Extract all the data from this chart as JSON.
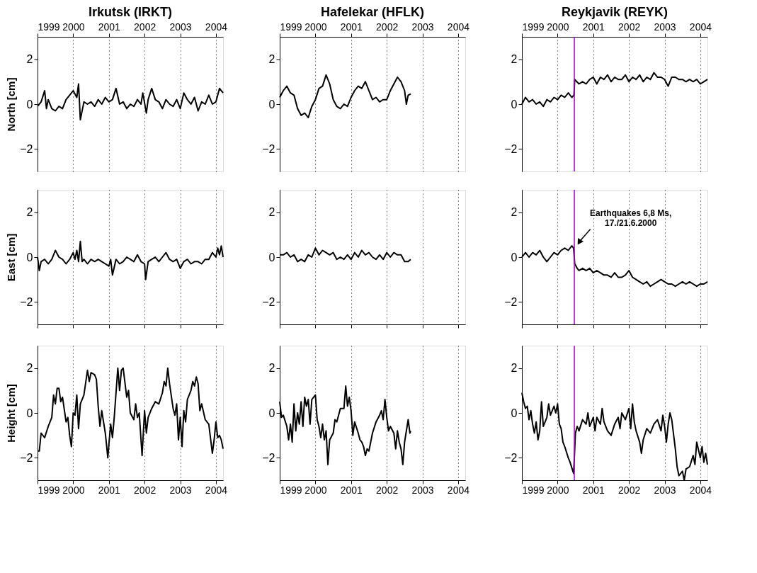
{
  "chart_data": [
    {
      "type": "line",
      "title": "Irkutsk (IRKT)",
      "ylabel": "North [cm]",
      "xlim": [
        1999,
        2004.2
      ],
      "xticks": [
        1999,
        2000,
        2001,
        2002,
        2003,
        2004
      ],
      "ylim": [
        -3,
        3
      ],
      "yticks": [
        -2,
        0,
        2
      ],
      "grid": "x",
      "x": [
        1999.0,
        1999.1,
        1999.2,
        1999.25,
        1999.3,
        1999.4,
        1999.5,
        1999.6,
        1999.7,
        1999.8,
        1999.9,
        2000.0,
        2000.1,
        2000.15,
        2000.2,
        2000.3,
        2000.4,
        2000.5,
        2000.6,
        2000.7,
        2000.8,
        2000.9,
        2001.0,
        2001.1,
        2001.2,
        2001.3,
        2001.4,
        2001.5,
        2001.6,
        2001.7,
        2001.8,
        2001.9,
        2001.95,
        2002.05,
        2002.1,
        2002.2,
        2002.3,
        2002.4,
        2002.5,
        2002.6,
        2002.7,
        2002.8,
        2002.9,
        2003.0,
        2003.1,
        2003.2,
        2003.3,
        2003.4,
        2003.5,
        2003.6,
        2003.7,
        2003.8,
        2003.9,
        2004.0,
        2004.1,
        2004.2
      ],
      "series": [
        {
          "color": "#000000",
          "values": [
            -0.1,
            0.1,
            0.6,
            -0.2,
            0.2,
            -0.2,
            -0.3,
            -0.1,
            -0.2,
            0.2,
            0.4,
            0.6,
            0.3,
            0.9,
            -0.7,
            0.1,
            0.0,
            0.1,
            -0.1,
            0.2,
            0.0,
            0.3,
            0.1,
            0.2,
            0.7,
            0.0,
            0.1,
            -0.2,
            0.0,
            -0.1,
            0.2,
            0.0,
            0.5,
            -0.4,
            0.2,
            0.7,
            0.2,
            0.1,
            -0.2,
            0.2,
            0.0,
            -0.1,
            0.2,
            -0.2,
            0.5,
            0.2,
            0.0,
            0.3,
            -0.3,
            0.1,
            0.0,
            0.4,
            0.0,
            0.1,
            0.7,
            0.5
          ]
        }
      ]
    },
    {
      "type": "line",
      "title": "Hafelekar (HFLK)",
      "xlim": [
        1999,
        2004.2
      ],
      "xticks": [
        1999,
        2000,
        2001,
        2002,
        2003,
        2004
      ],
      "ylim": [
        -3,
        3
      ],
      "yticks": [
        -2,
        0,
        2
      ],
      "grid": "x",
      "x": [
        1999.0,
        1999.1,
        1999.2,
        1999.3,
        1999.4,
        1999.5,
        1999.6,
        1999.7,
        1999.8,
        1999.9,
        2000.0,
        2000.1,
        2000.2,
        2000.3,
        2000.4,
        2000.5,
        2000.6,
        2000.7,
        2000.8,
        2000.9,
        2001.0,
        2001.1,
        2001.2,
        2001.3,
        2001.4,
        2001.5,
        2001.6,
        2001.7,
        2001.8,
        2001.9,
        2002.0,
        2002.1,
        2002.2,
        2002.3,
        2002.4,
        2002.5,
        2002.55,
        2002.6,
        2002.67
      ],
      "series": [
        {
          "color": "#000000",
          "values": [
            0.3,
            0.6,
            0.8,
            0.5,
            0.4,
            -0.2,
            -0.5,
            -0.4,
            -0.6,
            -0.1,
            0.2,
            0.7,
            0.8,
            1.3,
            0.9,
            0.2,
            -0.1,
            -0.2,
            0.0,
            -0.1,
            0.3,
            0.6,
            0.8,
            0.7,
            1.0,
            0.6,
            0.2,
            0.3,
            0.1,
            0.2,
            0.2,
            0.6,
            0.9,
            1.2,
            1.0,
            0.6,
            0.0,
            0.4,
            0.45
          ]
        }
      ]
    },
    {
      "type": "line",
      "title": "Reykjavik (REYK)",
      "xlim": [
        1999,
        2004.2
      ],
      "xticks": [
        1999,
        2000,
        2001,
        2002,
        2003,
        2004
      ],
      "ylim": [
        -3,
        3
      ],
      "yticks": [
        -2,
        0,
        2
      ],
      "grid": "x",
      "ref_lines": [
        {
          "axis": "x",
          "value": 2000.47,
          "color": "#aa00dd"
        }
      ],
      "x": [
        1999.0,
        1999.1,
        1999.2,
        1999.3,
        1999.4,
        1999.5,
        1999.6,
        1999.7,
        1999.8,
        1999.9,
        2000.0,
        2000.1,
        2000.2,
        2000.3,
        2000.4,
        2000.46,
        2000.48,
        2000.6,
        2000.7,
        2000.8,
        2000.9,
        2001.0,
        2001.1,
        2001.2,
        2001.3,
        2001.4,
        2001.5,
        2001.6,
        2001.7,
        2001.8,
        2001.9,
        2002.0,
        2002.1,
        2002.2,
        2002.3,
        2002.4,
        2002.5,
        2002.6,
        2002.7,
        2002.8,
        2002.9,
        2003.0,
        2003.1,
        2003.2,
        2003.3,
        2003.4,
        2003.5,
        2003.6,
        2003.7,
        2003.8,
        2003.9,
        2004.0,
        2004.1,
        2004.2
      ],
      "series": [
        {
          "color": "#000000",
          "values": [
            0.0,
            0.3,
            0.1,
            0.2,
            0.0,
            0.1,
            -0.1,
            0.2,
            0.1,
            0.3,
            0.2,
            0.4,
            0.3,
            0.5,
            0.3,
            0.4,
            1.1,
            0.9,
            1.0,
            0.9,
            1.1,
            1.2,
            0.9,
            1.2,
            1.1,
            1.3,
            1.0,
            1.2,
            1.1,
            1.1,
            1.3,
            1.0,
            1.2,
            1.1,
            1.3,
            1.0,
            1.2,
            1.1,
            1.4,
            1.2,
            1.2,
            1.1,
            0.8,
            1.2,
            1.2,
            1.1,
            1.1,
            1.0,
            1.1,
            1.0,
            1.1,
            0.9,
            1.0,
            1.1
          ]
        }
      ]
    },
    {
      "type": "line",
      "ylabel": "East [cm]",
      "xlim": [
        1999,
        2004.2
      ],
      "xticks": [
        1999,
        2000,
        2001,
        2002,
        2003,
        2004
      ],
      "tick_labels": "y",
      "ylim": [
        -3,
        3
      ],
      "yticks": [
        -2,
        0,
        2
      ],
      "grid": "x",
      "x": [
        1999.0,
        1999.05,
        1999.1,
        1999.2,
        1999.3,
        1999.4,
        1999.5,
        1999.6,
        1999.7,
        1999.8,
        1999.9,
        2000.0,
        2000.05,
        2000.1,
        2000.15,
        2000.2,
        2000.25,
        2000.3,
        2000.4,
        2000.5,
        2000.6,
        2000.7,
        2000.8,
        2000.9,
        2001.0,
        2001.05,
        2001.1,
        2001.2,
        2001.3,
        2001.4,
        2001.5,
        2001.6,
        2001.7,
        2001.8,
        2001.9,
        2002.0,
        2002.03,
        2002.1,
        2002.2,
        2002.3,
        2002.4,
        2002.5,
        2002.6,
        2002.7,
        2002.8,
        2002.9,
        2003.0,
        2003.1,
        2003.2,
        2003.3,
        2003.4,
        2003.5,
        2003.6,
        2003.7,
        2003.8,
        2003.9,
        2004.0,
        2004.05,
        2004.1,
        2004.15,
        2004.2
      ],
      "series": [
        {
          "color": "#000000",
          "values": [
            0.0,
            -0.6,
            -0.2,
            -0.1,
            -0.3,
            -0.1,
            0.3,
            0.0,
            -0.1,
            -0.3,
            -0.1,
            0.2,
            -0.1,
            0.3,
            -0.2,
            0.7,
            -0.2,
            -0.1,
            -0.3,
            -0.1,
            -0.2,
            -0.1,
            -0.2,
            -0.3,
            -0.4,
            -0.1,
            -0.8,
            -0.1,
            -0.3,
            -0.2,
            0.0,
            -0.1,
            -0.2,
            0.1,
            -0.2,
            -0.3,
            -1.0,
            -0.2,
            -0.1,
            0.0,
            -0.2,
            0.0,
            0.2,
            -0.1,
            -0.2,
            -0.1,
            -0.5,
            -0.2,
            -0.1,
            -0.3,
            -0.2,
            -0.2,
            -0.3,
            -0.1,
            -0.1,
            0.2,
            0.0,
            0.4,
            0.1,
            0.5,
            0.0
          ]
        }
      ]
    },
    {
      "type": "line",
      "xlim": [
        1999,
        2004.2
      ],
      "xticks": [
        1999,
        2000,
        2001,
        2002,
        2003,
        2004
      ],
      "tick_labels": "y",
      "ylim": [
        -3,
        3
      ],
      "yticks": [
        -2,
        0,
        2
      ],
      "grid": "x",
      "x": [
        1999.0,
        1999.1,
        1999.2,
        1999.3,
        1999.4,
        1999.5,
        1999.6,
        1999.7,
        1999.8,
        1999.9,
        2000.0,
        2000.1,
        2000.2,
        2000.3,
        2000.4,
        2000.5,
        2000.6,
        2000.7,
        2000.8,
        2000.9,
        2001.0,
        2001.1,
        2001.2,
        2001.3,
        2001.4,
        2001.5,
        2001.6,
        2001.7,
        2001.8,
        2001.9,
        2002.0,
        2002.1,
        2002.2,
        2002.3,
        2002.4,
        2002.5,
        2002.6,
        2002.67
      ],
      "series": [
        {
          "color": "#000000",
          "values": [
            0.1,
            0.1,
            0.2,
            0.0,
            0.1,
            -0.2,
            -0.1,
            -0.2,
            0.1,
            0.0,
            0.4,
            0.1,
            0.3,
            0.2,
            0.1,
            0.2,
            -0.1,
            0.0,
            -0.1,
            0.1,
            -0.1,
            0.2,
            0.0,
            0.3,
            0.1,
            0.2,
            0.0,
            -0.1,
            0.1,
            -0.1,
            0.2,
            0.0,
            0.2,
            0.1,
            0.1,
            -0.2,
            -0.2,
            -0.1
          ]
        }
      ]
    },
    {
      "type": "line",
      "xlim": [
        1999,
        2004.2
      ],
      "xticks": [
        1999,
        2000,
        2001,
        2002,
        2003,
        2004
      ],
      "tick_labels": "y",
      "ylim": [
        -3,
        3
      ],
      "yticks": [
        -2,
        0,
        2
      ],
      "grid": "x",
      "ref_lines": [
        {
          "axis": "x",
          "value": 2000.47,
          "color": "#aa00dd"
        }
      ],
      "annotations": [
        {
          "text": "Earthquakes 6,8 Ms,\n17./21.6.2000",
          "x": 2000.5,
          "y": 0.5
        }
      ],
      "x": [
        1999.0,
        1999.1,
        1999.2,
        1999.3,
        1999.4,
        1999.5,
        1999.6,
        1999.7,
        1999.8,
        1999.9,
        2000.0,
        2000.1,
        2000.2,
        2000.3,
        2000.4,
        2000.45,
        2000.48,
        2000.55,
        2000.6,
        2000.7,
        2000.8,
        2000.9,
        2001.0,
        2001.1,
        2001.2,
        2001.3,
        2001.4,
        2001.5,
        2001.6,
        2001.7,
        2001.8,
        2001.9,
        2002.0,
        2002.1,
        2002.2,
        2002.3,
        2002.4,
        2002.5,
        2002.6,
        2002.7,
        2002.8,
        2002.9,
        2003.0,
        2003.1,
        2003.2,
        2003.3,
        2003.4,
        2003.5,
        2003.6,
        2003.7,
        2003.8,
        2003.9,
        2004.0,
        2004.1,
        2004.2
      ],
      "series": [
        {
          "color": "#000000",
          "values": [
            0.0,
            0.2,
            0.0,
            0.2,
            0.1,
            0.3,
            0.0,
            -0.2,
            0.0,
            0.2,
            0.1,
            0.3,
            0.4,
            0.3,
            0.5,
            0.4,
            -0.3,
            -0.5,
            -0.6,
            -0.5,
            -0.6,
            -0.5,
            -0.7,
            -0.6,
            -0.7,
            -0.8,
            -0.8,
            -0.9,
            -0.7,
            -0.9,
            -0.9,
            -0.8,
            -0.6,
            -0.9,
            -1.0,
            -1.1,
            -1.2,
            -1.1,
            -1.3,
            -1.2,
            -1.1,
            -1.0,
            -1.1,
            -1.2,
            -1.2,
            -1.3,
            -1.2,
            -1.1,
            -1.2,
            -1.1,
            -1.2,
            -1.3,
            -1.2,
            -1.2,
            -1.1
          ]
        }
      ]
    },
    {
      "type": "line",
      "ylabel": "Height [cm]",
      "xlim": [
        1999,
        2004.2
      ],
      "xticks": [
        1999,
        2000,
        2001,
        2002,
        2003,
        2004
      ],
      "ylim": [
        -3,
        3
      ],
      "yticks": [
        -2,
        0,
        2
      ],
      "grid": "x",
      "x": [
        1999.0,
        1999.05,
        1999.1,
        1999.2,
        1999.3,
        1999.4,
        1999.45,
        1999.5,
        1999.55,
        1999.6,
        1999.65,
        1999.7,
        1999.8,
        1999.85,
        1999.9,
        1999.95,
        2000.0,
        2000.05,
        2000.1,
        2000.15,
        2000.2,
        2000.3,
        2000.4,
        2000.45,
        2000.5,
        2000.6,
        2000.65,
        2000.7,
        2000.75,
        2000.8,
        2000.9,
        2000.97,
        2001.0,
        2001.05,
        2001.1,
        2001.15,
        2001.2,
        2001.25,
        2001.3,
        2001.35,
        2001.4,
        2001.5,
        2001.55,
        2001.6,
        2001.7,
        2001.75,
        2001.8,
        2001.85,
        2001.93,
        2002.0,
        2002.05,
        2002.1,
        2002.2,
        2002.3,
        2002.4,
        2002.5,
        2002.55,
        2002.6,
        2002.65,
        2002.7,
        2002.8,
        2002.85,
        2002.9,
        2002.95,
        2003.0,
        2003.05,
        2003.1,
        2003.15,
        2003.2,
        2003.3,
        2003.35,
        2003.4,
        2003.45,
        2003.5,
        2003.55,
        2003.6,
        2003.7,
        2003.8,
        2003.9,
        2003.95,
        2004.0,
        2004.05,
        2004.1,
        2004.15,
        2004.2
      ],
      "series": [
        {
          "color": "#000000",
          "values": [
            -1.7,
            -1.7,
            -0.9,
            -1.1,
            -0.6,
            -0.2,
            0.8,
            0.4,
            1.1,
            1.1,
            0.5,
            0.7,
            -0.4,
            -0.2,
            -1.0,
            -1.5,
            0.0,
            -0.1,
            0.8,
            -0.7,
            0.4,
            0.8,
            1.9,
            1.4,
            1.8,
            1.7,
            1.5,
            0.3,
            -0.6,
            0.1,
            -0.9,
            -2.0,
            -1.4,
            -0.5,
            -1.1,
            -0.2,
            0.9,
            2.0,
            1.0,
            1.9,
            2.0,
            0.7,
            1.0,
            0.0,
            -0.3,
            0.4,
            -0.2,
            0.0,
            -1.9,
            0.1,
            -0.9,
            -0.2,
            0.2,
            0.5,
            0.4,
            0.9,
            1.4,
            1.2,
            2.0,
            1.3,
            0.2,
            -0.1,
            0.4,
            -1.2,
            -0.2,
            -1.5,
            0.1,
            -0.4,
            0.6,
            1.0,
            1.4,
            1.2,
            1.6,
            1.3,
            0.1,
            0.4,
            -0.3,
            -0.5,
            -1.8,
            -1.2,
            -0.4,
            -1.1,
            -1.0,
            -1.2,
            -1.6
          ]
        }
      ]
    },
    {
      "type": "line",
      "xlim": [
        1999,
        2004.2
      ],
      "xticks": [
        1999,
        2000,
        2001,
        2002,
        2003,
        2004
      ],
      "ylim": [
        -3,
        3
      ],
      "yticks": [
        -2,
        0,
        2
      ],
      "grid": "x",
      "x": [
        1999.0,
        1999.05,
        1999.1,
        1999.2,
        1999.25,
        1999.3,
        1999.35,
        1999.4,
        1999.45,
        1999.5,
        1999.55,
        1999.6,
        1999.65,
        1999.7,
        1999.75,
        1999.8,
        1999.85,
        1999.9,
        2000.0,
        2000.05,
        2000.1,
        2000.15,
        2000.2,
        2000.25,
        2000.3,
        2000.35,
        2000.4,
        2000.5,
        2000.55,
        2000.6,
        2000.7,
        2000.8,
        2000.85,
        2000.9,
        2000.95,
        2001.0,
        2001.05,
        2001.1,
        2001.2,
        2001.25,
        2001.3,
        2001.35,
        2001.4,
        2001.45,
        2001.5,
        2001.6,
        2001.7,
        2001.8,
        2001.85,
        2001.9,
        2001.95,
        2002.0,
        2002.05,
        2002.1,
        2002.2,
        2002.25,
        2002.3,
        2002.35,
        2002.4,
        2002.45,
        2002.5,
        2002.6,
        2002.65,
        2002.67
      ],
      "series": [
        {
          "color": "#000000",
          "values": [
            0.5,
            -0.2,
            -0.1,
            -0.6,
            -1.2,
            -0.5,
            -1.3,
            0.4,
            -0.8,
            0.0,
            -0.5,
            0.5,
            -0.6,
            0.7,
            0.3,
            0.6,
            -0.5,
            0.6,
            0.8,
            -0.3,
            -0.6,
            -1.1,
            -0.5,
            -1.2,
            -0.8,
            -2.3,
            -1.2,
            -0.9,
            -0.3,
            -0.4,
            0.2,
            0.2,
            1.2,
            0.3,
            0.7,
            0.1,
            -1.0,
            -0.4,
            -0.9,
            -1.2,
            -1.3,
            -1.5,
            -1.9,
            -1.6,
            -1.7,
            -0.9,
            -0.4,
            -0.1,
            0.1,
            -0.3,
            0.6,
            -0.2,
            -0.8,
            -0.6,
            -0.9,
            -1.6,
            -0.8,
            -1.3,
            -1.6,
            -2.3,
            -1.3,
            -0.3,
            -0.9,
            -0.8
          ]
        }
      ]
    },
    {
      "type": "line",
      "xlim": [
        1999,
        2004.2
      ],
      "xticks": [
        1999,
        2000,
        2001,
        2002,
        2003,
        2004
      ],
      "ylim": [
        -3,
        3
      ],
      "yticks": [
        -2,
        0,
        2
      ],
      "grid": "x",
      "ref_lines": [
        {
          "axis": "x",
          "value": 2000.47,
          "color": "#aa00dd"
        }
      ],
      "x": [
        1999.0,
        1999.05,
        1999.1,
        1999.15,
        1999.2,
        1999.25,
        1999.3,
        1999.35,
        1999.4,
        1999.45,
        1999.5,
        1999.55,
        1999.6,
        1999.7,
        1999.75,
        1999.8,
        1999.9,
        1999.95,
        2000.0,
        2000.05,
        2000.1,
        2000.15,
        2000.2,
        2000.3,
        2000.35,
        2000.45,
        2000.5,
        2000.55,
        2000.6,
        2000.7,
        2000.8,
        2000.85,
        2000.9,
        2001.0,
        2001.05,
        2001.1,
        2001.2,
        2001.25,
        2001.3,
        2001.4,
        2001.5,
        2001.6,
        2001.7,
        2001.75,
        2001.8,
        2001.9,
        2002.0,
        2002.05,
        2002.1,
        2002.15,
        2002.2,
        2002.3,
        2002.35,
        2002.4,
        2002.5,
        2002.6,
        2002.7,
        2002.8,
        2002.9,
        2002.95,
        2003.0,
        2003.05,
        2003.1,
        2003.15,
        2003.2,
        2003.3,
        2003.35,
        2003.4,
        2003.5,
        2003.55,
        2003.6,
        2003.7,
        2003.8,
        2003.85,
        2003.9,
        2004.0,
        2004.05,
        2004.1,
        2004.15,
        2004.2
      ],
      "series": [
        {
          "color": "#000000",
          "values": [
            0.9,
            0.5,
            0.2,
            0.3,
            -0.3,
            0.1,
            -0.5,
            -0.9,
            -0.4,
            -1.2,
            -0.8,
            0.5,
            -0.6,
            -0.2,
            0.4,
            -0.1,
            0.3,
            0.0,
            0.4,
            -0.5,
            -0.7,
            -1.3,
            -1.5,
            -2.0,
            -2.2,
            -2.7,
            -0.9,
            -0.6,
            -0.8,
            -0.3,
            -0.5,
            0.0,
            -0.6,
            -0.2,
            -0.8,
            -0.2,
            -0.5,
            0.2,
            -0.4,
            -0.8,
            -1.0,
            -0.5,
            -0.2,
            -0.7,
            0.0,
            -0.3,
            0.2,
            -0.7,
            0.4,
            -0.4,
            -0.8,
            -1.3,
            -1.8,
            -1.2,
            -0.7,
            -0.9,
            -0.5,
            -0.3,
            -0.8,
            -0.1,
            -0.6,
            -1.3,
            -0.5,
            0.0,
            -0.3,
            -1.6,
            -2.4,
            -2.8,
            -2.6,
            -3.0,
            -2.5,
            -2.4,
            -1.9,
            -2.3,
            -1.3,
            -2.0,
            -1.5,
            -2.2,
            -1.8,
            -2.3
          ]
        }
      ]
    }
  ]
}
